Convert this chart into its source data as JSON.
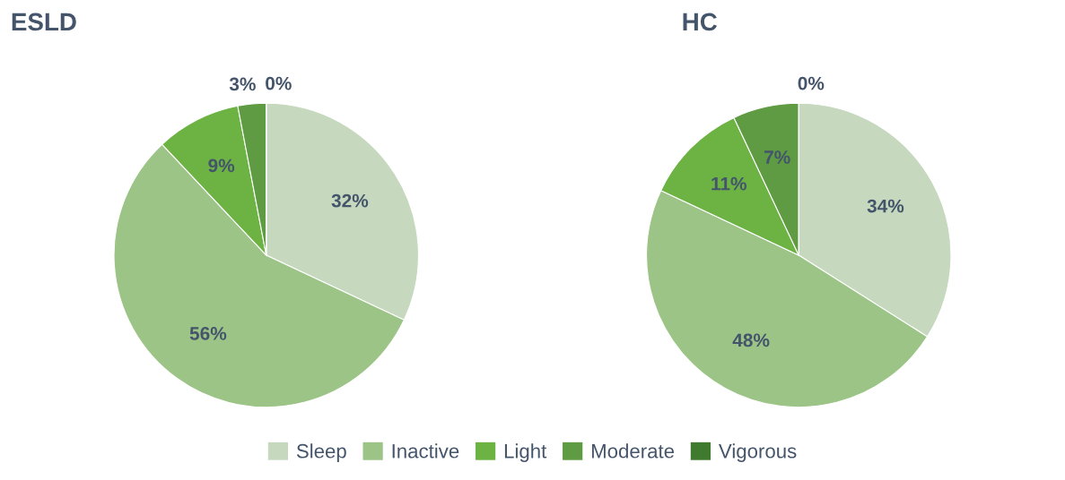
{
  "chart_data": [
    {
      "type": "pie",
      "title": "ESLD",
      "categories": [
        "Sleep",
        "Inactive",
        "Light",
        "Moderate",
        "Vigorous"
      ],
      "values": [
        32,
        56,
        9,
        3,
        0
      ],
      "value_labels": [
        "32%",
        "56%",
        "9%",
        "3%",
        "0%"
      ],
      "colors": [
        "#c6d9bf",
        "#9cc487",
        "#6cb344",
        "#5f9b43",
        "#3f7a2e"
      ],
      "legend": "bottom"
    },
    {
      "type": "pie",
      "title": "HC",
      "categories": [
        null,
        null,
        null,
        null,
        null
      ],
      "values": [
        34,
        48,
        11,
        7,
        0
      ],
      "value_labels": [
        "34%",
        "48%",
        "11%",
        "7%",
        "0%"
      ],
      "colors": [
        "#c6d9bf",
        "#9cc487",
        "#6cb344",
        "#5f9b43",
        "#3f7a2e"
      ]
    }
  ]
}
